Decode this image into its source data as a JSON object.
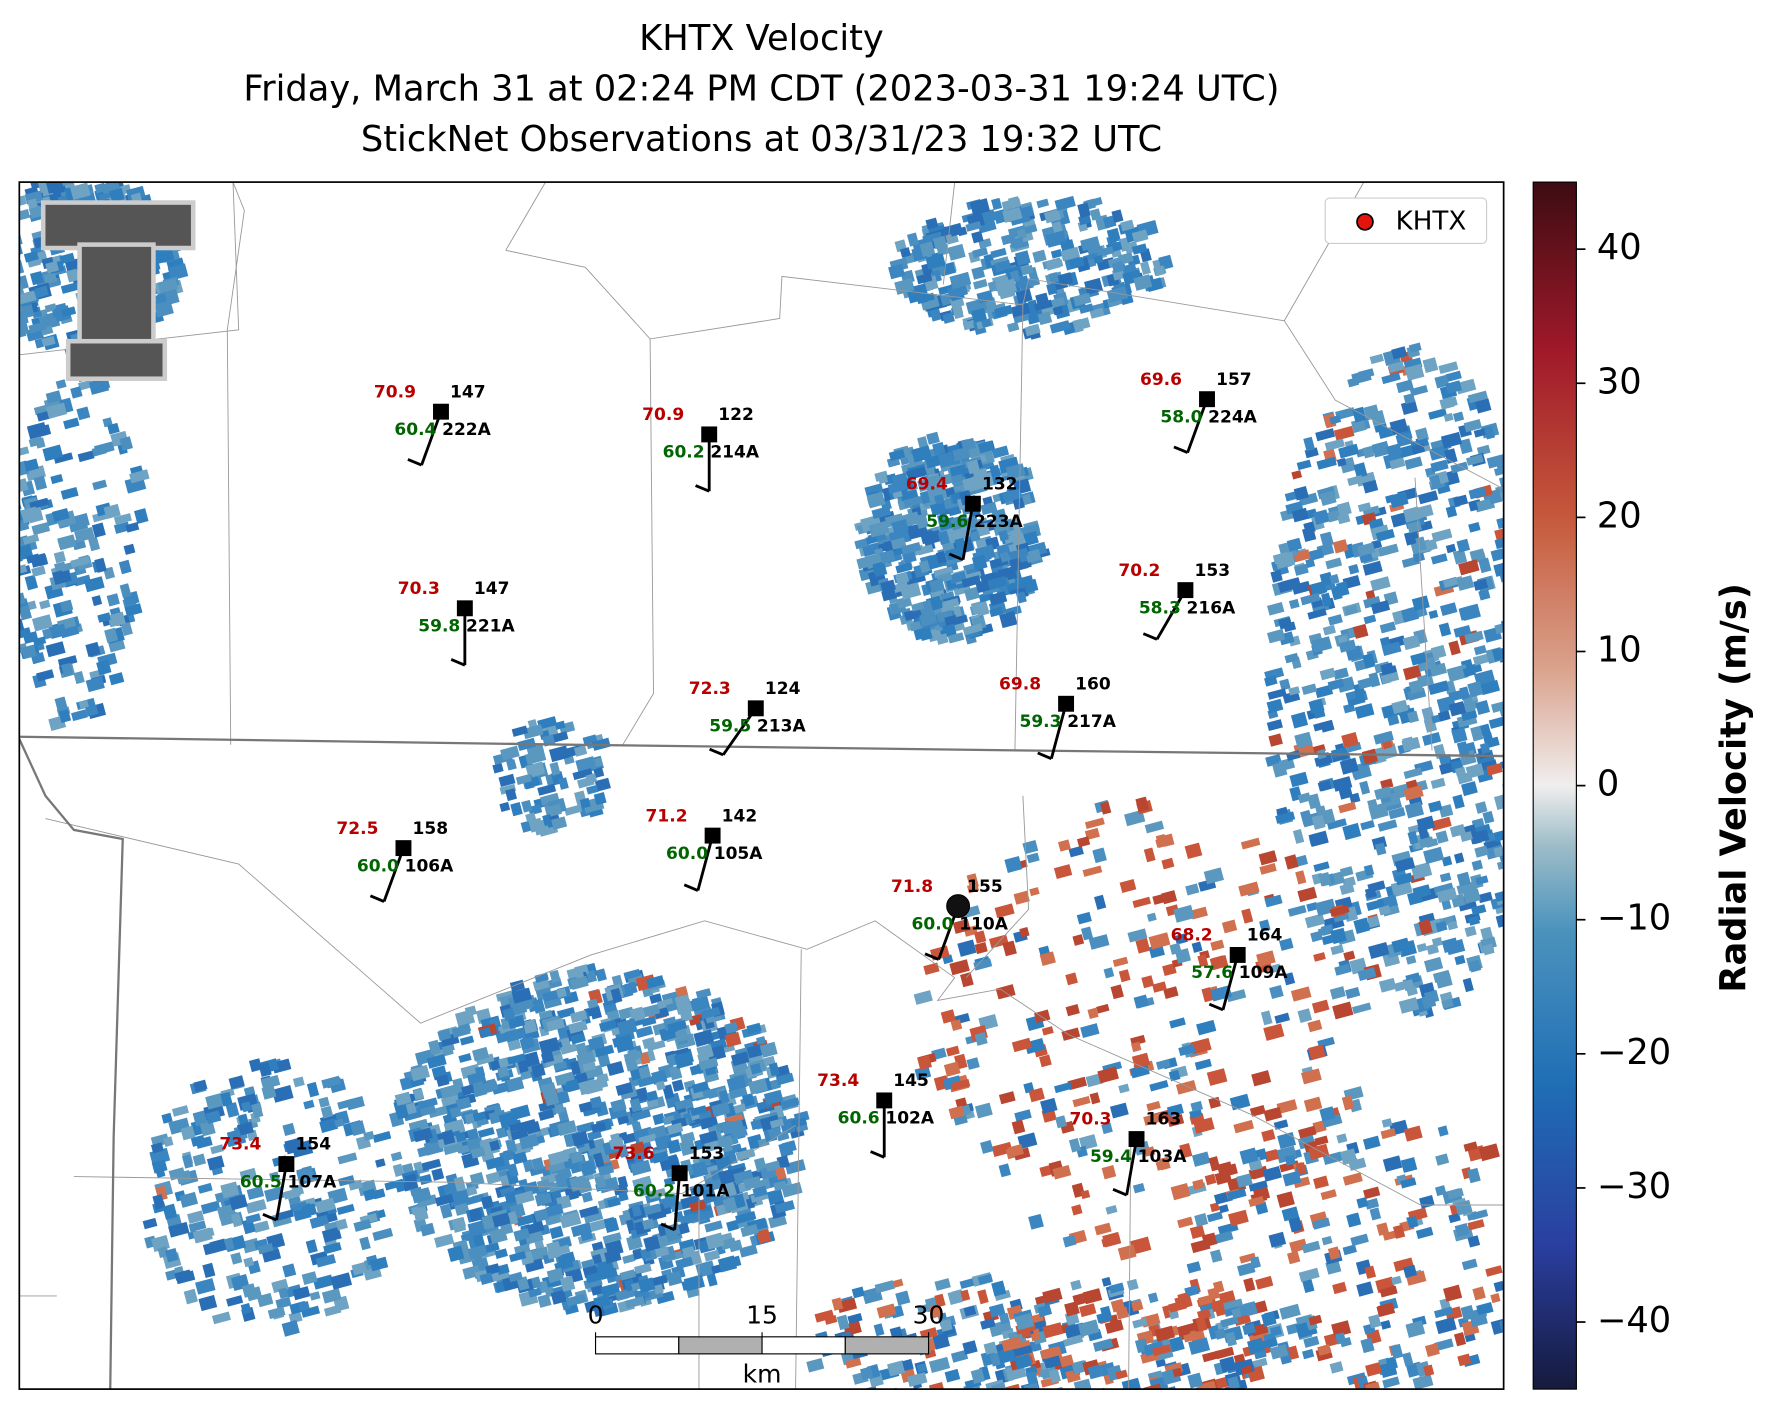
{
  "title_lines": [
    "KHTX Velocity",
    "Friday, March 31 at 02:24 PM CDT (2023-03-31 19:24 UTC)",
    "StickNet Observations at 03/31/23 19:32 UTC"
  ],
  "legend": {
    "label": "KHTX"
  },
  "colorbar": {
    "label": "Radial Velocity (m/s)",
    "lim": [
      -45,
      45
    ],
    "ticks": [
      {
        "value": -40,
        "label": "−40"
      },
      {
        "value": -30,
        "label": "−30"
      },
      {
        "value": -20,
        "label": "−20"
      },
      {
        "value": -10,
        "label": "−10"
      },
      0,
      10,
      20,
      30,
      40
    ]
  },
  "scale_bar": {
    "ticks": [
      0,
      15,
      30
    ],
    "unit": "km"
  },
  "stations": [
    {
      "id": "222A",
      "temperature": "70.9",
      "dewpoint": "60.4",
      "pressure": "147"
    },
    {
      "id": "214A",
      "temperature": "70.9",
      "dewpoint": "60.2",
      "pressure": "122"
    },
    {
      "id": "224A",
      "temperature": "69.6",
      "dewpoint": "58.0",
      "pressure": "157"
    },
    {
      "id": "223A",
      "temperature": "69.4",
      "dewpoint": "59.6",
      "pressure": "132"
    },
    {
      "id": "221A",
      "temperature": "70.3",
      "dewpoint": "59.8",
      "pressure": "147"
    },
    {
      "id": "216A",
      "temperature": "70.2",
      "dewpoint": "58.3",
      "pressure": "153"
    },
    {
      "id": "213A",
      "temperature": "72.3",
      "dewpoint": "59.5",
      "pressure": "124"
    },
    {
      "id": "217A",
      "temperature": "69.8",
      "dewpoint": "59.3",
      "pressure": "160"
    },
    {
      "id": "106A",
      "temperature": "72.5",
      "dewpoint": "60.0",
      "pressure": "158"
    },
    {
      "id": "105A",
      "temperature": "71.2",
      "dewpoint": "60.0",
      "pressure": "142"
    },
    {
      "id": "110A",
      "temperature": "71.8",
      "dewpoint": "60.0",
      "pressure": "155"
    },
    {
      "id": "109A",
      "temperature": "68.2",
      "dewpoint": "57.6",
      "pressure": "164"
    },
    {
      "id": "102A",
      "temperature": "73.4",
      "dewpoint": "60.6",
      "pressure": "145"
    },
    {
      "id": "103A",
      "temperature": "70.3",
      "dewpoint": "59.4",
      "pressure": "163"
    },
    {
      "id": "107A",
      "temperature": "73.4",
      "dewpoint": "60.5",
      "pressure": "154"
    },
    {
      "id": "101A",
      "temperature": "73.6",
      "dewpoint": "60.2",
      "pressure": "153"
    }
  ]
}
